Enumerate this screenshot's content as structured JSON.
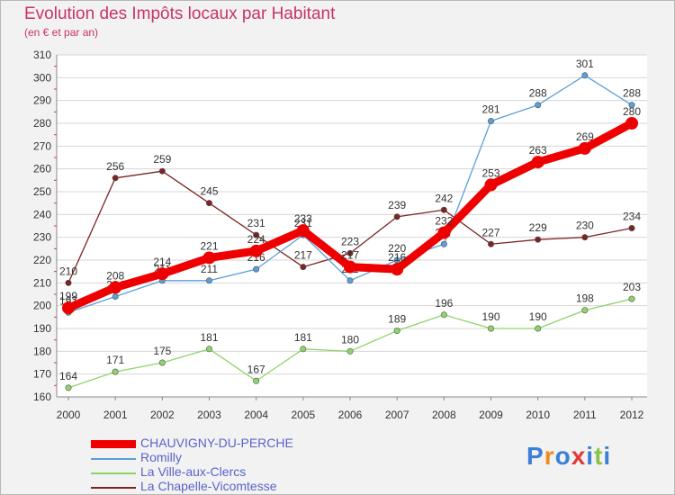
{
  "header": {
    "title": "Evolution des Impôts locaux par Habitant",
    "subtitle": "(en € et par an)"
  },
  "logo": {
    "text": "Proxiti",
    "colors": [
      "#3b7fd8",
      "#f08a1c",
      "#3b7fd8",
      "#e53935",
      "#3b7fd8",
      "#8bc34a",
      "#3b7fd8"
    ]
  },
  "chart_data": {
    "type": "line",
    "title": "Evolution des Impôts locaux par Habitant",
    "subtitle": "(en € et par an)",
    "xlabel": "",
    "ylabel": "",
    "ylim": [
      160,
      310
    ],
    "y_ticks": [
      160,
      170,
      180,
      190,
      200,
      210,
      220,
      230,
      240,
      250,
      260,
      270,
      280,
      290,
      300,
      310
    ],
    "grid": "horizontal",
    "legend_position": "bottom-left",
    "x": [
      "2000",
      "2001",
      "2002",
      "2003",
      "2004",
      "2005",
      "2006",
      "2007",
      "2008",
      "2009",
      "2010",
      "2011",
      "2012"
    ],
    "series": [
      {
        "name": "La Chapelle-Vicomtesse",
        "color": "#7b2424",
        "values": [
          210,
          256,
          259,
          245,
          231,
          217,
          223,
          239,
          242,
          227,
          229,
          230,
          234
        ]
      },
      {
        "name": "La Ville-aux-Clercs",
        "color": "#8fd36a",
        "values": [
          164,
          171,
          175,
          181,
          167,
          181,
          180,
          189,
          196,
          190,
          190,
          198,
          203
        ]
      },
      {
        "name": "Romilly",
        "color": "#5b9fd6",
        "values": [
          197,
          204,
          211,
          211,
          216,
          231,
          211,
          220,
          227,
          281,
          288,
          301,
          288
        ]
      },
      {
        "name": "CHAUVIGNY-DU-PERCHE",
        "color": "#ee0000",
        "values": [
          199,
          208,
          214,
          221,
          224,
          233,
          217,
          216,
          232,
          253,
          263,
          269,
          280
        ]
      }
    ]
  },
  "legend": {
    "items": [
      {
        "label": "CHAUVIGNY-DU-PERCHE",
        "color": "#ee0000",
        "thick": true
      },
      {
        "label": "Romilly",
        "color": "#5b9fd6",
        "thick": false
      },
      {
        "label": "La Ville-aux-Clercs",
        "color": "#8fd36a",
        "thick": false
      },
      {
        "label": "La Chapelle-Vicomtesse",
        "color": "#7b2424",
        "thick": false
      }
    ]
  }
}
